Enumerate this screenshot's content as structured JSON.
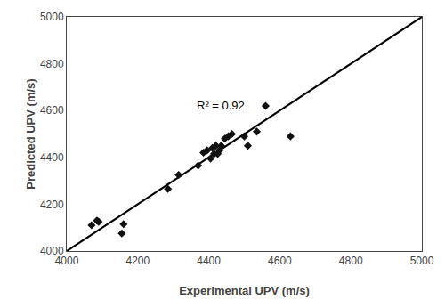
{
  "chart_data": {
    "type": "scatter",
    "xlabel": "Experimental UPV (m/s)",
    "ylabel": "Predicted UPV (m/s)",
    "series": [
      {
        "type": "scatter",
        "marker": "diamond",
        "color": "#111111",
        "x": [
          4070,
          4085,
          4090,
          4155,
          4160,
          4285,
          4315,
          4370,
          4385,
          4395,
          4405,
          4410,
          4415,
          4420,
          4425,
          4430,
          4435,
          4445,
          4455,
          4465,
          4500,
          4510,
          4535,
          4560,
          4630
        ],
        "values": [
          4110,
          4130,
          4125,
          4075,
          4115,
          4265,
          4325,
          4365,
          4420,
          4430,
          4395,
          4440,
          4415,
          4450,
          4415,
          4430,
          4450,
          4480,
          4490,
          4500,
          4490,
          4450,
          4510,
          4620,
          4490
        ]
      },
      {
        "type": "line",
        "color": "#000000",
        "x": [
          4000,
          5000
        ],
        "values": [
          4000,
          5000
        ]
      }
    ],
    "annotations": [
      {
        "text": "R² = 0.92",
        "x": 4360,
        "y": 4620
      }
    ],
    "xlim": [
      4000,
      5000
    ],
    "ylim": [
      4000,
      5000
    ],
    "xticks": [
      4000,
      4200,
      4400,
      4600,
      4800,
      5000
    ],
    "yticks": [
      4000,
      4200,
      4400,
      4600,
      4800,
      5000
    ],
    "grid": false
  }
}
